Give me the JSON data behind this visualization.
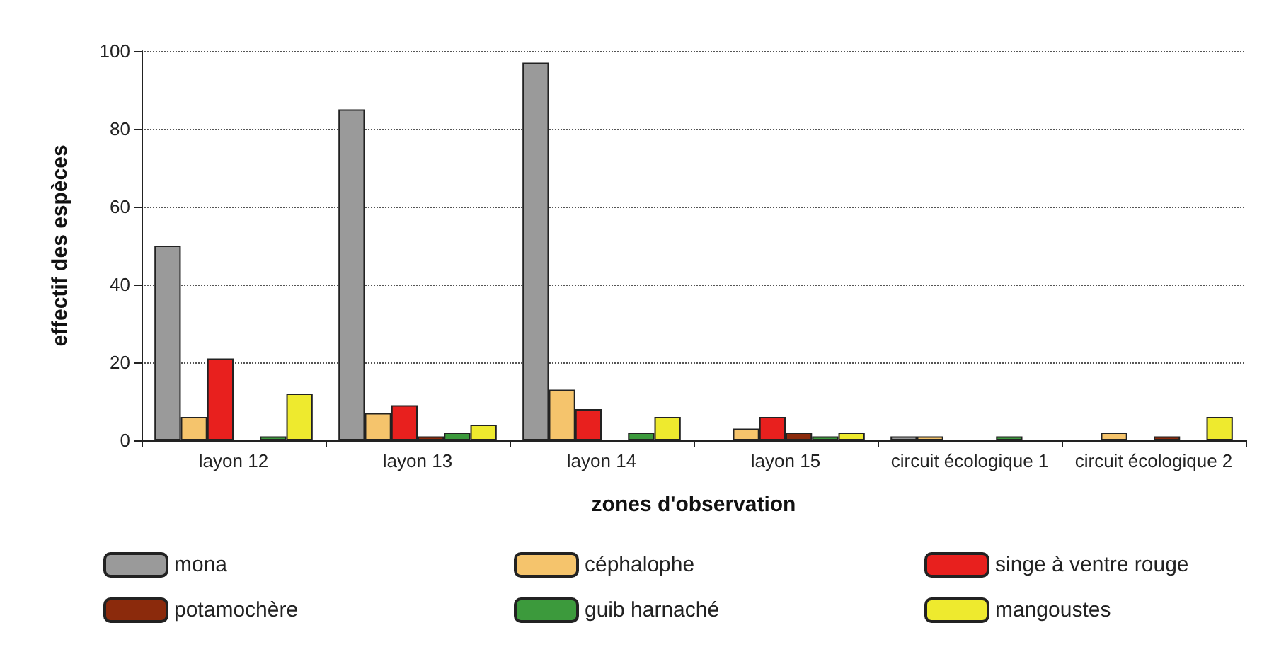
{
  "chart_data": {
    "type": "bar",
    "xlabel": "zones d'observation",
    "ylabel": "effectif des espèces",
    "categories": [
      "layon 12",
      "layon 13",
      "layon 14",
      "layon 15",
      "circuit écologique 1",
      "circuit écologique 2"
    ],
    "series": [
      {
        "name": "mona",
        "color": "#9a9a9a",
        "values": [
          50,
          85,
          97,
          0,
          1,
          0
        ]
      },
      {
        "name": "céphalophe",
        "color": "#f5c46c",
        "values": [
          6,
          7,
          13,
          3,
          1,
          2
        ]
      },
      {
        "name": "singe à ventre rouge",
        "color": "#e8201e",
        "values": [
          21,
          9,
          8,
          6,
          0,
          0
        ]
      },
      {
        "name": "potamochère",
        "color": "#8b2a0c",
        "values": [
          0,
          1,
          0,
          2,
          0,
          1
        ]
      },
      {
        "name": "guib harnaché",
        "color": "#3c9a3c",
        "values": [
          1,
          2,
          2,
          1,
          1,
          0
        ]
      },
      {
        "name": "mangoustes",
        "color": "#eeea2e",
        "values": [
          12,
          4,
          6,
          2,
          0,
          6
        ]
      }
    ],
    "ylim": [
      0,
      100
    ],
    "yticks": [
      0,
      20,
      40,
      60,
      80,
      100
    ],
    "grid": "y",
    "legend": "bottom"
  }
}
